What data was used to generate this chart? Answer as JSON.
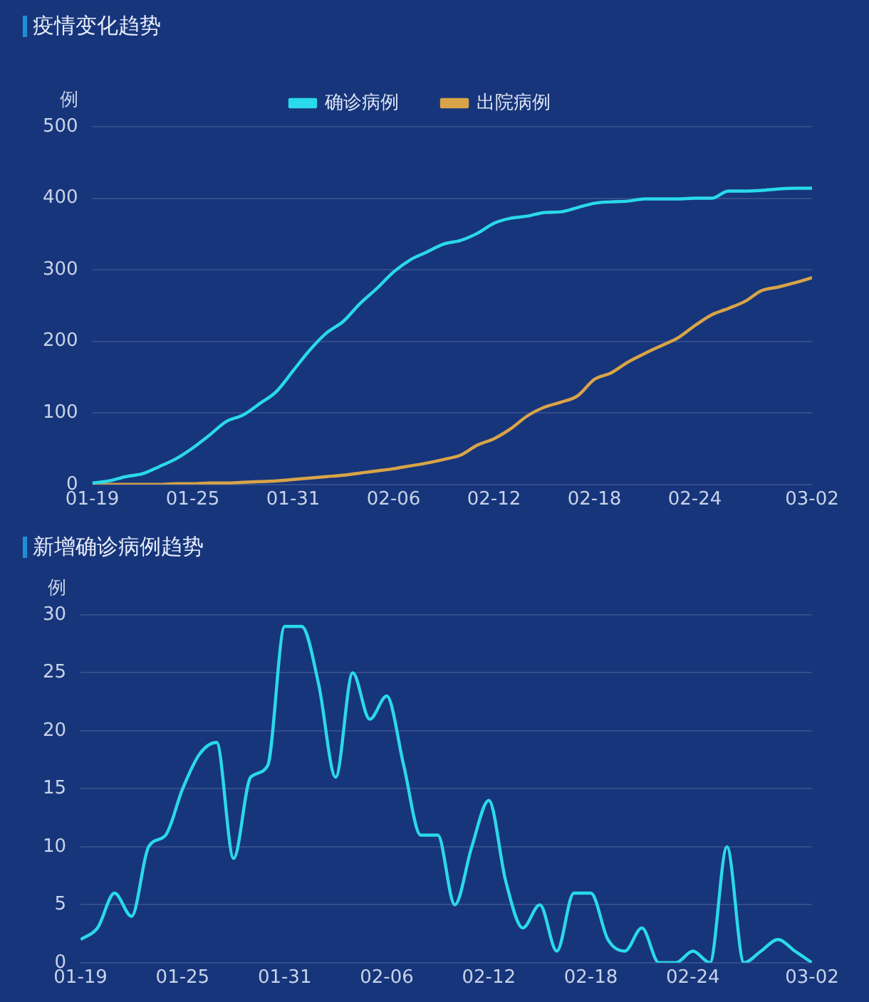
{
  "chart_data": [
    {
      "type": "line",
      "title": "疫情变化趋势",
      "ylabel": "例",
      "legend": "top",
      "grid": "y",
      "marker": "none",
      "x": [
        "--01-19",
        "--01-20",
        "--01-21",
        "--01-22",
        "--01-23",
        "--01-24",
        "--01-25",
        "--01-26",
        "--01-27",
        "--01-28",
        "--01-29",
        "--01-30",
        "--01-31",
        "--02-01",
        "--02-02",
        "--02-03",
        "--02-04",
        "--02-05",
        "--02-06",
        "--02-07",
        "--02-08",
        "--02-09",
        "--02-10",
        "--02-11",
        "--02-12",
        "--02-13",
        "--02-14",
        "--02-15",
        "--02-16",
        "--02-17",
        "--02-18",
        "--02-19",
        "--02-20",
        "--02-21",
        "--02-22",
        "--02-23",
        "--02-24",
        "--02-25",
        "--02-26",
        "--02-27",
        "--02-28",
        "--02-29",
        "--03-01",
        "--03-02"
      ],
      "xlim": [
        "--01-19",
        "--03-02"
      ],
      "xticks": [
        {
          "value": "--01-19",
          "label": "01-19"
        },
        {
          "value": "--01-25",
          "label": "01-25"
        },
        {
          "value": "--01-31",
          "label": "01-31"
        },
        {
          "value": "--02-06",
          "label": "02-06"
        },
        {
          "value": "--02-12",
          "label": "02-12"
        },
        {
          "value": "--02-18",
          "label": "02-18"
        },
        {
          "value": "--02-24",
          "label": "02-24"
        },
        {
          "value": "--03-02",
          "label": "03-02"
        }
      ],
      "ylim": [
        0,
        500
      ],
      "yticks": [
        0,
        100,
        200,
        300,
        400,
        500
      ],
      "series": [
        {
          "name": "确诊病例",
          "color": "#2ad9ea",
          "values": [
            2,
            5,
            11,
            15,
            25,
            36,
            51,
            69,
            88,
            97,
            113,
            130,
            159,
            188,
            212,
            228,
            253,
            274,
            297,
            314,
            325,
            336,
            341,
            351,
            365,
            372,
            375,
            380,
            381,
            387,
            393,
            395,
            396,
            399,
            399,
            399,
            400,
            400,
            410,
            410,
            411,
            413,
            414,
            414
          ]
        },
        {
          "name": "出院病例",
          "color": "#d9a447",
          "values": [
            0,
            0,
            0,
            0,
            0,
            1,
            1,
            2,
            2,
            3,
            4,
            5,
            7,
            9,
            11,
            13,
            16,
            19,
            22,
            26,
            30,
            35,
            41,
            55,
            64,
            78,
            96,
            108,
            115,
            124,
            147,
            156,
            171,
            183,
            194,
            205,
            222,
            237,
            246,
            256,
            271,
            276,
            282,
            289
          ]
        }
      ]
    },
    {
      "type": "line",
      "title": "新增确诊病例趋势",
      "ylabel": "例",
      "grid": "y",
      "marker": "none",
      "x": [
        "--01-19",
        "--01-20",
        "--01-21",
        "--01-22",
        "--01-23",
        "--01-24",
        "--01-25",
        "--01-26",
        "--01-27",
        "--01-28",
        "--01-29",
        "--01-30",
        "--01-31",
        "--02-01",
        "--02-02",
        "--02-03",
        "--02-04",
        "--02-05",
        "--02-06",
        "--02-07",
        "--02-08",
        "--02-09",
        "--02-10",
        "--02-11",
        "--02-12",
        "--02-13",
        "--02-14",
        "--02-15",
        "--02-16",
        "--02-17",
        "--02-18",
        "--02-19",
        "--02-20",
        "--02-21",
        "--02-22",
        "--02-23",
        "--02-24",
        "--02-25",
        "--02-26",
        "--02-27",
        "--02-28",
        "--02-29",
        "--03-01",
        "--03-02"
      ],
      "xlim": [
        "--01-19",
        "--03-02"
      ],
      "xticks": [
        {
          "value": "--01-19",
          "label": "01-19"
        },
        {
          "value": "--01-25",
          "label": "01-25"
        },
        {
          "value": "--01-31",
          "label": "01-31"
        },
        {
          "value": "--02-06",
          "label": "02-06"
        },
        {
          "value": "--02-12",
          "label": "02-12"
        },
        {
          "value": "--02-18",
          "label": "02-18"
        },
        {
          "value": "--02-24",
          "label": "02-24"
        },
        {
          "value": "--03-02",
          "label": "03-02"
        }
      ],
      "ylim": [
        0,
        30
      ],
      "yticks": [
        0,
        5,
        10,
        15,
        20,
        25,
        30
      ],
      "series": [
        {
          "color": "#2ad9ea",
          "values": [
            2,
            3,
            6,
            4,
            10,
            11,
            15,
            18,
            19,
            9,
            16,
            17,
            29,
            29,
            24,
            16,
            25,
            21,
            23,
            17,
            11,
            11,
            5,
            10,
            14,
            7,
            3,
            5,
            1,
            6,
            6,
            2,
            1,
            3,
            0,
            0,
            1,
            0,
            10,
            0,
            1,
            2,
            1,
            0
          ]
        }
      ]
    }
  ]
}
